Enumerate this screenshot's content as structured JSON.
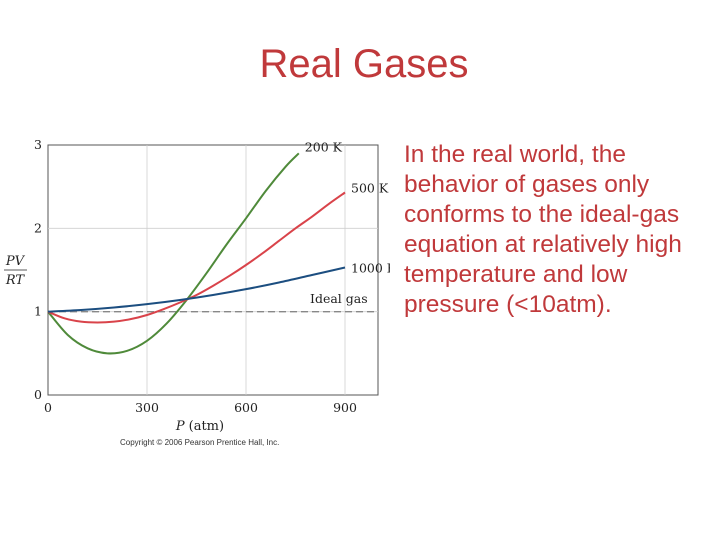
{
  "slide": {
    "title": "Real Gases",
    "body": "In the real world, the behavior of gases only conforms to the ideal-gas equation at relatively high temperature and low pressure (<10atm).",
    "copyright": "Copyright © 2006 Pearson Prentice Hall, Inc."
  },
  "colors": {
    "title": "#c0393b",
    "series_200K": "#4f8a3a",
    "series_500K": "#d9434a",
    "series_1000K": "#1c4e80",
    "ideal": "#888888"
  },
  "chart_data": {
    "type": "line",
    "xlabel_italic": "P",
    "xlabel_unit": "(atm)",
    "ylabel_numerator": "PV",
    "ylabel_denominator": "RT",
    "xlim": [
      0,
      1000
    ],
    "ylim": [
      0,
      3
    ],
    "x_ticks": [
      0,
      300,
      600,
      900
    ],
    "y_ticks": [
      0,
      1,
      2,
      3
    ],
    "grid": true,
    "series": [
      {
        "name": "200 K",
        "color": "#4f8a3a",
        "x": [
          0,
          60,
          120,
          180,
          240,
          300,
          360,
          420,
          480,
          540,
          600,
          660,
          720,
          760
        ],
        "y": [
          1.0,
          0.72,
          0.56,
          0.5,
          0.53,
          0.65,
          0.86,
          1.14,
          1.46,
          1.8,
          2.12,
          2.45,
          2.74,
          2.9
        ]
      },
      {
        "name": "500 K",
        "color": "#d9434a",
        "x": [
          0,
          50,
          100,
          150,
          200,
          250,
          300,
          350,
          400,
          450,
          500,
          550,
          600,
          650,
          700,
          750,
          800,
          850,
          900
        ],
        "y": [
          1.0,
          0.92,
          0.88,
          0.87,
          0.88,
          0.91,
          0.96,
          1.03,
          1.11,
          1.2,
          1.31,
          1.43,
          1.56,
          1.7,
          1.85,
          2.0,
          2.14,
          2.29,
          2.43
        ]
      },
      {
        "name": "1000 K",
        "color": "#1c4e80",
        "x": [
          0,
          100,
          200,
          300,
          400,
          500,
          600,
          700,
          800,
          900
        ],
        "y": [
          1.0,
          1.02,
          1.05,
          1.09,
          1.14,
          1.2,
          1.27,
          1.35,
          1.44,
          1.53
        ]
      }
    ],
    "reference": {
      "name": "Ideal gas",
      "y": 1,
      "color": "#888888",
      "style": "dashed"
    }
  }
}
